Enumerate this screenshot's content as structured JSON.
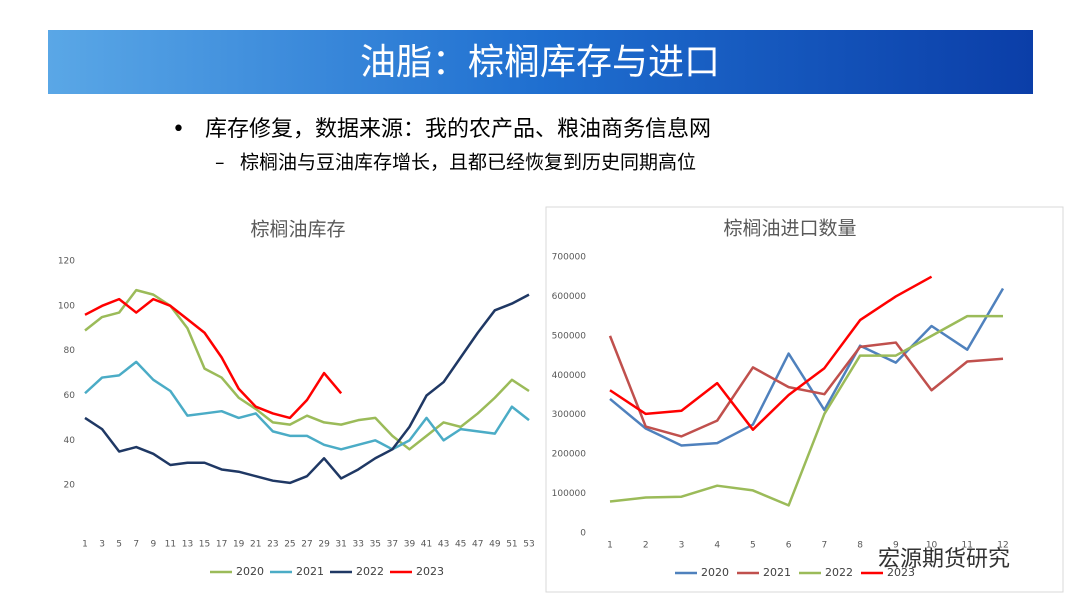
{
  "header": {
    "title": "油脂：棕榈库存与进口",
    "bullet": "库存修复，数据来源：我的农产品、粮油商务信息网",
    "sub_bullet": "棕榈油与豆油库存增长，且都已经恢复到历史同期高位"
  },
  "watermark": "宏源期货研究",
  "chart_data": [
    {
      "type": "line",
      "title": "棕榈油库存",
      "x": [
        1,
        3,
        5,
        7,
        9,
        11,
        13,
        15,
        17,
        19,
        21,
        23,
        25,
        27,
        29,
        31,
        33,
        35,
        37,
        39,
        41,
        43,
        45,
        47,
        49,
        51,
        53
      ],
      "xlim": [
        1,
        53
      ],
      "xticks": [
        1,
        3,
        5,
        7,
        9,
        11,
        13,
        15,
        17,
        19,
        21,
        23,
        25,
        27,
        29,
        31,
        33,
        35,
        37,
        39,
        41,
        43,
        45,
        47,
        49,
        51,
        53
      ],
      "ylim": [
        0,
        120
      ],
      "yticks": [
        20,
        40,
        60,
        80,
        100,
        120
      ],
      "series": [
        {
          "name": "2020",
          "color": "#9bbb59",
          "values": [
            89,
            95,
            97,
            107,
            105,
            100,
            90,
            72,
            68,
            59,
            54,
            48,
            47,
            51,
            48,
            47,
            49,
            50,
            42,
            36,
            42,
            48,
            46,
            52,
            59,
            67,
            62
          ]
        },
        {
          "name": "2021",
          "color": "#4bacc6",
          "values": [
            61,
            68,
            69,
            75,
            67,
            62,
            51,
            52,
            53,
            50,
            52,
            44,
            42,
            42,
            38,
            36,
            38,
            40,
            36,
            40,
            50,
            40,
            45,
            44,
            43,
            55,
            49
          ]
        },
        {
          "name": "2022",
          "color": "#1f3864",
          "values": [
            50,
            45,
            35,
            37,
            34,
            29,
            30,
            30,
            27,
            26,
            24,
            22,
            21,
            24,
            32,
            23,
            27,
            32,
            36,
            46,
            60,
            66,
            77,
            88,
            98,
            101,
            105
          ]
        },
        {
          "name": "2023",
          "color": "#ff0000",
          "values": [
            96,
            100,
            103,
            97,
            103,
            100,
            94,
            88,
            77,
            63,
            55,
            52,
            50,
            58,
            70,
            61,
            null,
            null,
            null,
            null,
            null,
            null,
            null,
            null,
            null,
            null,
            null
          ]
        }
      ]
    },
    {
      "type": "line",
      "title": "棕榈油进口数量",
      "x": [
        1,
        2,
        3,
        4,
        5,
        6,
        7,
        8,
        9,
        10,
        11,
        12
      ],
      "xlim": [
        1,
        12
      ],
      "xticks": [
        1,
        2,
        3,
        4,
        5,
        6,
        7,
        8,
        9,
        10,
        11,
        12
      ],
      "ylim": [
        0,
        700000
      ],
      "yticks": [
        0,
        100000,
        200000,
        300000,
        400000,
        500000,
        600000,
        700000
      ],
      "series": [
        {
          "name": "2020",
          "color": "#4f81bd",
          "values": [
            340000,
            265000,
            222000,
            228000,
            275000,
            455000,
            312000,
            475000,
            432000,
            525000,
            465000,
            620000
          ]
        },
        {
          "name": "2021",
          "color": "#c0504d",
          "values": [
            500000,
            270000,
            245000,
            285000,
            420000,
            370000,
            352000,
            472000,
            483000,
            362000,
            435000,
            442000
          ]
        },
        {
          "name": "2022",
          "color": "#9bbb59",
          "values": [
            80000,
            90000,
            92000,
            120000,
            108000,
            70000,
            302000,
            450000,
            450000,
            500000,
            550000,
            550000
          ]
        },
        {
          "name": "2023",
          "color": "#ff0000",
          "values": [
            362000,
            302000,
            310000,
            380000,
            262000,
            350000,
            418000,
            540000,
            600000,
            650000,
            null,
            null
          ]
        }
      ]
    }
  ]
}
